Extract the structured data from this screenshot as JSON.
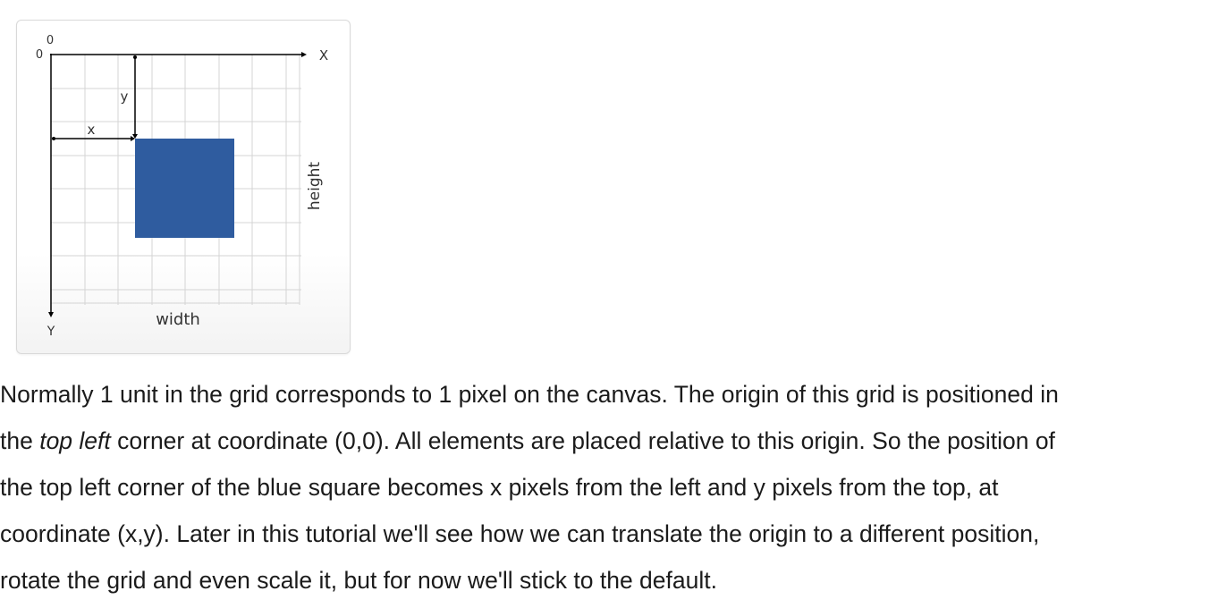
{
  "diagram": {
    "origin_x_label": "0",
    "origin_y_label": "0",
    "x_axis_label": "X",
    "y_axis_label": "Y",
    "x_offset_label": "x",
    "y_offset_label": "y",
    "width_label": "width",
    "height_label": "height",
    "square_color": "#2f5c9f",
    "grid_color": "#d4d4d4",
    "axis_color": "#000000"
  },
  "text": {
    "line1": "Normally 1 unit in the grid corresponds to 1 pixel on the canvas. The origin of this grid is positioned in",
    "line2_before": "the ",
    "line2_em": "top left",
    "line2_after": " corner at coordinate (0,0). All elements are placed relative to this origin. So the position of",
    "line3": "the top left corner of the blue square becomes x pixels from the left and y pixels from the top, at",
    "line4": "coordinate (x,y). Later in this tutorial we'll see how we can translate the origin to a different position,",
    "line5": "rotate the grid and even scale it, but for now we'll stick to the default."
  }
}
